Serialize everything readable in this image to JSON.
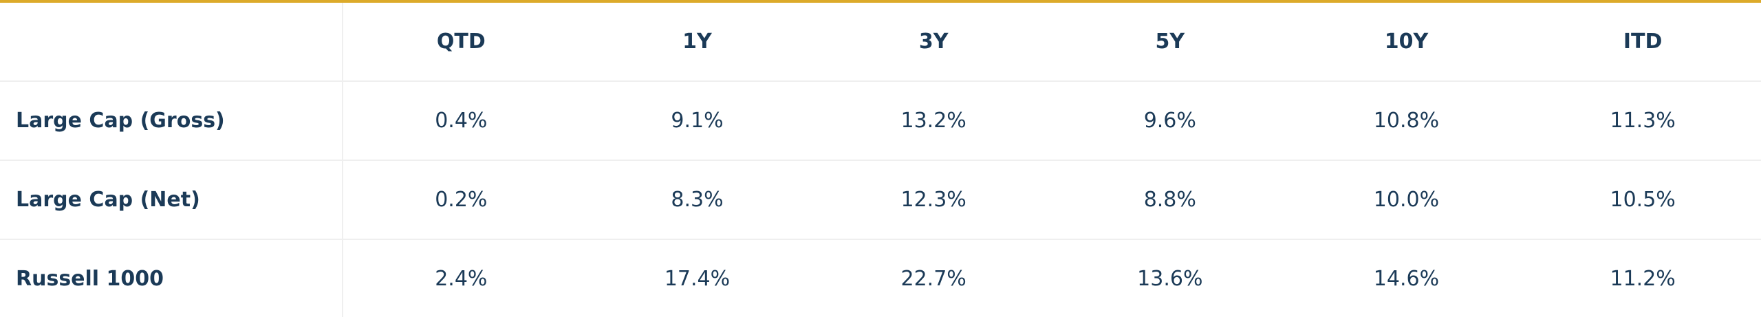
{
  "table": {
    "columns": [
      "QTD",
      "1Y",
      "3Y",
      "5Y",
      "10Y",
      "ITD"
    ],
    "rows": [
      [
        "Large Cap (Gross)",
        "0.4%",
        "9.1%",
        "13.2%",
        "9.6%",
        "10.8%",
        "11.3%"
      ],
      [
        "Large Cap (Net)",
        "0.2%",
        "8.3%",
        "12.3%",
        "8.8%",
        "10.0%",
        "10.5%"
      ],
      [
        "Russell 1000",
        "2.4%",
        "17.4%",
        "22.7%",
        "13.6%",
        "14.6%",
        "11.2%"
      ]
    ]
  }
}
